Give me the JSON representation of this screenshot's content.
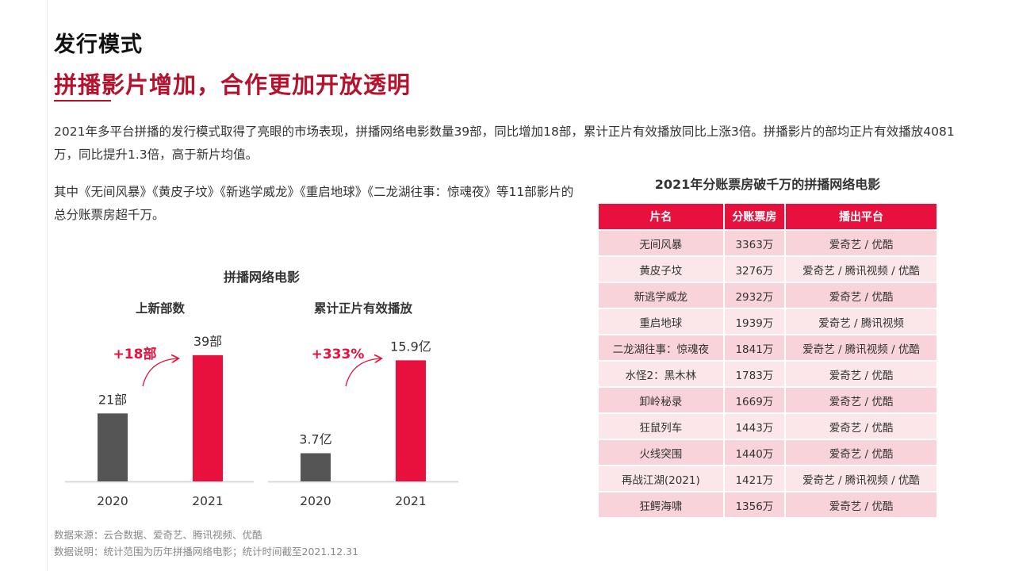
{
  "header": {
    "title": "发行模式",
    "subtitle": "拼播影片增加，合作更加开放透明"
  },
  "body": {
    "paragraph1": "2021年多平台拼播的发行模式取得了亮眼的市场表现，拼播网络电影数量39部，同比增加18部，累计正片有效播放同比上涨3倍。拼播影片的部均正片有效播放4081万，同比提升1.3倍，高于新片均值。",
    "paragraph2": "其中《无间风暴》《黄皮子坟》《新逃学威龙》《重启地球》《二龙湖往事：惊魂夜》等11部影片的总分账票房超千万。"
  },
  "chart_data": [
    {
      "type": "bar",
      "title": "上新部数",
      "categories": [
        "2020",
        "2021"
      ],
      "values": [
        21,
        39
      ],
      "value_labels": [
        "21部",
        "39部"
      ],
      "change_label": "+18部",
      "colors": [
        "#555555",
        "#e8103d"
      ]
    },
    {
      "type": "bar",
      "title": "累计正片有效播放",
      "categories": [
        "2020",
        "2021"
      ],
      "values": [
        3.7,
        15.9
      ],
      "value_labels": [
        "3.7亿",
        "15.9亿"
      ],
      "change_label": "+333%",
      "colors": [
        "#555555",
        "#e8103d"
      ]
    }
  ],
  "charts": {
    "main_title": "拼播网络电影"
  },
  "table": {
    "title": "2021年分账票房破千万的拼播网络电影",
    "headers": [
      "片名",
      "分账票房",
      "播出平台"
    ],
    "rows": [
      [
        "无间风暴",
        "3363万",
        "爱奇艺 / 优酷"
      ],
      [
        "黄皮子坟",
        "3276万",
        "爱奇艺 / 腾讯视频 / 优酷"
      ],
      [
        "新逃学威龙",
        "2932万",
        "爱奇艺 / 优酷"
      ],
      [
        "重启地球",
        "1939万",
        "爱奇艺 / 腾讯视频"
      ],
      [
        "二龙湖往事：惊魂夜",
        "1841万",
        "爱奇艺 / 腾讯视频 / 优酷"
      ],
      [
        "水怪2：黑木林",
        "1783万",
        "爱奇艺 / 优酷"
      ],
      [
        "卸岭秘录",
        "1669万",
        "爱奇艺 / 优酷"
      ],
      [
        "狂鼠列车",
        "1443万",
        "爱奇艺 / 优酷"
      ],
      [
        "火线突围",
        "1440万",
        "爱奇艺 / 优酷"
      ],
      [
        "再战江湖(2021)",
        "1421万",
        "爱奇艺 / 腾讯视频 / 优酷"
      ],
      [
        "狂鳄海啸",
        "1356万",
        "爱奇艺 / 优酷"
      ]
    ]
  },
  "footnotes": {
    "source": "数据来源：云合数据、爱奇艺、腾讯视频、优酷",
    "note": "数据说明：统计范围为历年拼播网络电影；统计时间截至2021.12.31"
  },
  "colors": {
    "accent": "#e8103d",
    "title_red": "#b5122e",
    "bar_gray": "#555555",
    "row_odd": "#f8d3d9",
    "row_even": "#fbe6e9"
  }
}
